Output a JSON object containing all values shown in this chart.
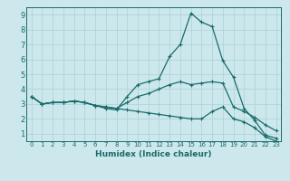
{
  "xlabel": "Humidex (Indice chaleur)",
  "bg_color": "#cce8ec",
  "grid_color": "#b0d4d8",
  "line_color": "#1a6b6b",
  "xlim": [
    -0.5,
    23.5
  ],
  "ylim": [
    0.5,
    9.5
  ],
  "xticks": [
    0,
    1,
    2,
    3,
    4,
    5,
    6,
    7,
    8,
    9,
    10,
    11,
    12,
    13,
    14,
    15,
    16,
    17,
    18,
    19,
    20,
    21,
    22,
    23
  ],
  "yticks": [
    1,
    2,
    3,
    4,
    5,
    6,
    7,
    8,
    9
  ],
  "line1_x": [
    0,
    1,
    2,
    3,
    4,
    5,
    6,
    7,
    8,
    9,
    10,
    11,
    12,
    13,
    14,
    15,
    16,
    17,
    18,
    19,
    20,
    21,
    22,
    23
  ],
  "line1_y": [
    3.5,
    3.0,
    3.1,
    3.1,
    3.2,
    3.1,
    2.9,
    2.7,
    2.6,
    3.5,
    4.3,
    4.5,
    4.7,
    6.2,
    7.0,
    9.1,
    8.5,
    8.2,
    5.9,
    4.8,
    2.7,
    1.9,
    0.9,
    0.7
  ],
  "line2_x": [
    0,
    1,
    2,
    3,
    4,
    5,
    6,
    7,
    8,
    9,
    10,
    11,
    12,
    13,
    14,
    15,
    16,
    17,
    18,
    19,
    20,
    21,
    22,
    23
  ],
  "line2_y": [
    3.5,
    3.0,
    3.1,
    3.1,
    3.2,
    3.1,
    2.9,
    2.8,
    2.7,
    3.1,
    3.5,
    3.7,
    4.0,
    4.3,
    4.5,
    4.3,
    4.4,
    4.5,
    4.4,
    2.8,
    2.5,
    2.1,
    1.6,
    1.2
  ],
  "line3_x": [
    0,
    1,
    2,
    3,
    4,
    5,
    6,
    7,
    8,
    9,
    10,
    11,
    12,
    13,
    14,
    15,
    16,
    17,
    18,
    19,
    20,
    21,
    22,
    23
  ],
  "line3_y": [
    3.5,
    3.0,
    3.1,
    3.1,
    3.2,
    3.1,
    2.9,
    2.8,
    2.7,
    2.6,
    2.5,
    2.4,
    2.3,
    2.2,
    2.1,
    2.0,
    2.0,
    2.5,
    2.8,
    2.0,
    1.8,
    1.4,
    0.8,
    0.5
  ]
}
